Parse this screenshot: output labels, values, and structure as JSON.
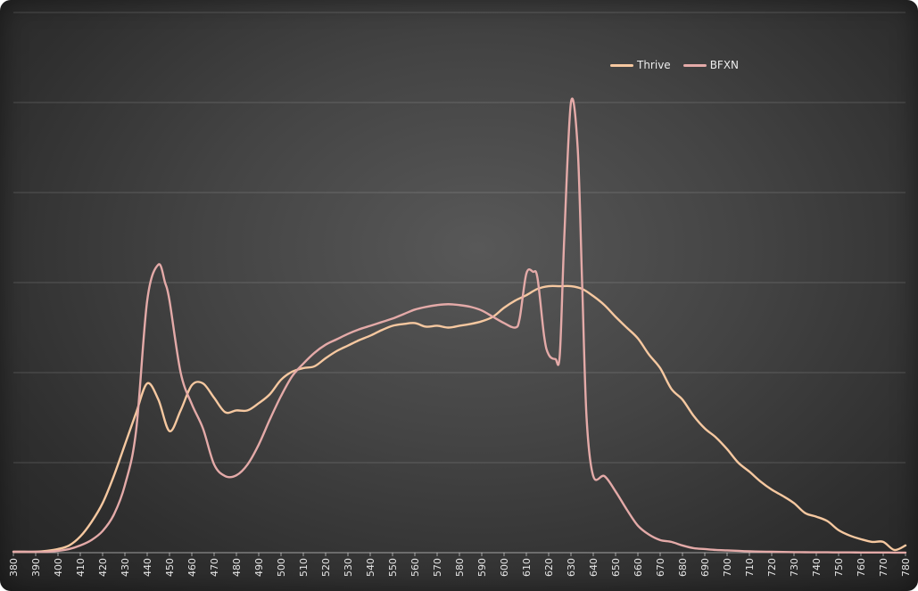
{
  "chart_data": {
    "type": "line",
    "title": "",
    "xlabel": "",
    "ylabel": "",
    "categories": [
      "380",
      "390",
      "400",
      "410",
      "420",
      "430",
      "440",
      "450",
      "460",
      "470",
      "480",
      "490",
      "500",
      "510",
      "520",
      "530",
      "540",
      "550",
      "560",
      "570",
      "580",
      "590",
      "600",
      "610",
      "620",
      "630",
      "640",
      "650",
      "660",
      "670",
      "680",
      "690",
      "700",
      "710",
      "720",
      "730",
      "740",
      "750",
      "760",
      "770",
      "780"
    ],
    "xlim": [
      380,
      780
    ],
    "ylim": [
      0,
      6
    ],
    "grid": true,
    "legend_position": "top-right",
    "series": [
      {
        "name": "Thrive",
        "color": "#f6c8a0",
        "x": [
          380,
          385,
          390,
          395,
          400,
          405,
          410,
          415,
          420,
          425,
          430,
          435,
          440,
          445,
          450,
          455,
          460,
          465,
          470,
          475,
          480,
          485,
          490,
          495,
          500,
          505,
          510,
          515,
          520,
          525,
          530,
          535,
          540,
          545,
          550,
          555,
          560,
          565,
          570,
          575,
          580,
          585,
          590,
          595,
          600,
          605,
          610,
          615,
          620,
          625,
          630,
          635,
          640,
          645,
          650,
          655,
          660,
          665,
          670,
          675,
          680,
          685,
          690,
          695,
          700,
          705,
          710,
          715,
          720,
          725,
          730,
          735,
          740,
          745,
          750,
          755,
          760,
          765,
          770,
          775,
          780
        ],
        "values": [
          0.01,
          0.01,
          0.01,
          0.02,
          0.04,
          0.08,
          0.18,
          0.34,
          0.55,
          0.85,
          1.2,
          1.55,
          1.88,
          1.7,
          1.35,
          1.58,
          1.86,
          1.88,
          1.72,
          1.56,
          1.58,
          1.58,
          1.66,
          1.76,
          1.92,
          2.01,
          2.05,
          2.07,
          2.16,
          2.24,
          2.3,
          2.36,
          2.41,
          2.47,
          2.52,
          2.54,
          2.55,
          2.51,
          2.52,
          2.5,
          2.52,
          2.54,
          2.57,
          2.62,
          2.72,
          2.8,
          2.86,
          2.93,
          2.96,
          2.96,
          2.96,
          2.93,
          2.85,
          2.75,
          2.62,
          2.5,
          2.38,
          2.2,
          2.05,
          1.82,
          1.7,
          1.52,
          1.38,
          1.28,
          1.15,
          1.0,
          0.9,
          0.79,
          0.7,
          0.63,
          0.55,
          0.44,
          0.4,
          0.35,
          0.25,
          0.19,
          0.15,
          0.12,
          0.12,
          0.03,
          0.08
        ]
      },
      {
        "name": "BFXN",
        "color": "#e4aaa8",
        "x": [
          380,
          385,
          390,
          395,
          400,
          405,
          410,
          415,
          420,
          425,
          430,
          435,
          440,
          445,
          448,
          450,
          455,
          460,
          465,
          470,
          475,
          480,
          485,
          490,
          495,
          500,
          505,
          510,
          515,
          520,
          525,
          530,
          535,
          540,
          545,
          550,
          555,
          560,
          565,
          570,
          575,
          580,
          585,
          590,
          595,
          600,
          605,
          607,
          610,
          613,
          615,
          618,
          620,
          623,
          625,
          627,
          630,
          633,
          635,
          637,
          640,
          645,
          650,
          655,
          660,
          665,
          670,
          675,
          680,
          685,
          690,
          695,
          700,
          705,
          710,
          715,
          720,
          725,
          730,
          735,
          740,
          745,
          750,
          755,
          760,
          765,
          770,
          775,
          780
        ],
        "values": [
          0.01,
          0.01,
          0.01,
          0.01,
          0.02,
          0.04,
          0.08,
          0.14,
          0.24,
          0.42,
          0.75,
          1.35,
          2.8,
          3.2,
          3.0,
          2.8,
          2.0,
          1.65,
          1.38,
          0.98,
          0.85,
          0.86,
          0.98,
          1.2,
          1.48,
          1.74,
          1.96,
          2.1,
          2.22,
          2.31,
          2.37,
          2.43,
          2.48,
          2.52,
          2.56,
          2.6,
          2.65,
          2.7,
          2.73,
          2.75,
          2.76,
          2.75,
          2.73,
          2.69,
          2.62,
          2.55,
          2.5,
          2.6,
          3.1,
          3.12,
          3.05,
          2.4,
          2.2,
          2.15,
          2.2,
          3.5,
          5.0,
          4.5,
          3.0,
          1.5,
          0.85,
          0.85,
          0.68,
          0.48,
          0.3,
          0.2,
          0.14,
          0.12,
          0.08,
          0.05,
          0.04,
          0.03,
          0.025,
          0.02,
          0.015,
          0.012,
          0.01,
          0.008,
          0.006,
          0.005,
          0.004,
          0.004,
          0.003,
          0.003,
          0.002,
          0.002,
          0.002,
          0.001,
          0.001
        ]
      }
    ]
  }
}
